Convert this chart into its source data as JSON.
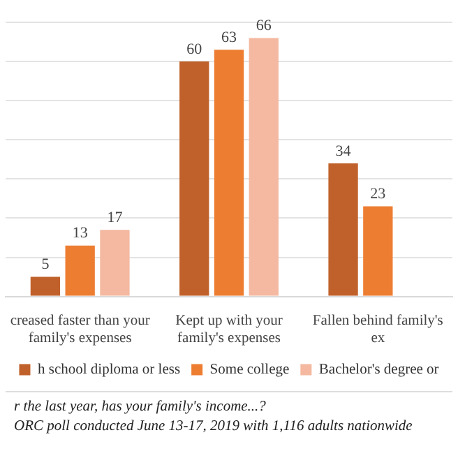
{
  "chart_data": {
    "type": "bar",
    "categories": [
      "creased faster than your family's expenses",
      "Kept up with your family's expenses",
      "Fallen behind family's ex"
    ],
    "series": [
      {
        "name": "h school diploma or less",
        "color": "#c0612b",
        "values": [
          5,
          60,
          34
        ]
      },
      {
        "name": "Some college",
        "color": "#ed7d31",
        "values": [
          13,
          63,
          23
        ]
      },
      {
        "name": "Bachelor's degree or",
        "color": "#f4b9a0",
        "values": [
          17,
          66,
          null
        ]
      }
    ],
    "ylim": [
      0,
      70
    ],
    "yticks": [
      {
        "value": 0,
        "label": null
      },
      {
        "value": 10,
        "label": null
      },
      {
        "value": 20,
        "label": null
      },
      {
        "value": 30,
        "label": null
      },
      {
        "value": 40,
        "label": null
      },
      {
        "value": 50,
        "label": null
      },
      {
        "value": 60,
        "label": null
      },
      {
        "value": 70,
        "label": null
      }
    ],
    "tick_labels": "x",
    "grid": "y",
    "data_labels": true,
    "legend": "bottom",
    "annotations": [
      "r the last year, has your family's income...?",
      "ORC poll conducted June 13-17, 2019 with 1,116 adults nationwide"
    ]
  }
}
